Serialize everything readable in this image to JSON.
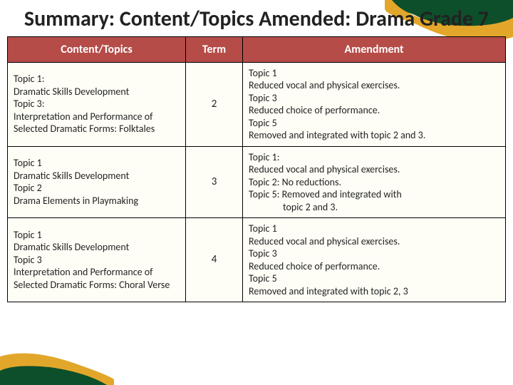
{
  "title": "Summary: Content/Topics Amended: Drama Grade 7",
  "headers": {
    "content": "Content/Topics",
    "term": "Term",
    "amendment": "Amendment"
  },
  "rows": [
    {
      "content": "Topic 1:\nDramatic Skills Development\nTopic 3:\nInterpretation and Performance of Selected Dramatic Forms: Folktales",
      "term": "2",
      "amendment": "Topic 1\nReduced vocal and physical exercises.\nTopic 3\nReduced choice of performance.\nTopic 5\nRemoved and integrated with topic 2 and 3."
    },
    {
      "content": "Topic 1\nDramatic Skills Development\nTopic 2\nDrama Elements in Playmaking",
      "term": "3",
      "amendment": "Topic 1:\nReduced vocal and physical exercises.\nTopic 2:  No reductions.\nTopic 5:  Removed and integrated with",
      "amendment_indent": "topic 2 and 3."
    },
    {
      "content": "Topic 1\nDramatic Skills Development\nTopic 3\nInterpretation and Performance of Selected Dramatic Forms:  Choral Verse",
      "term": "4",
      "amendment": "Topic 1\nReduced vocal and physical exercises.\nTopic 3\nReduced choice of performance.\nTopic 5\nRemoved and integrated with topic 2, 3"
    }
  ],
  "colors": {
    "header_bg": "#b54c48",
    "header_fg": "#ffffff",
    "cell_bg": "#fffef6",
    "border": "#000000",
    "accent_green": "#0d4f2a",
    "accent_gold": "#e2a72a"
  }
}
